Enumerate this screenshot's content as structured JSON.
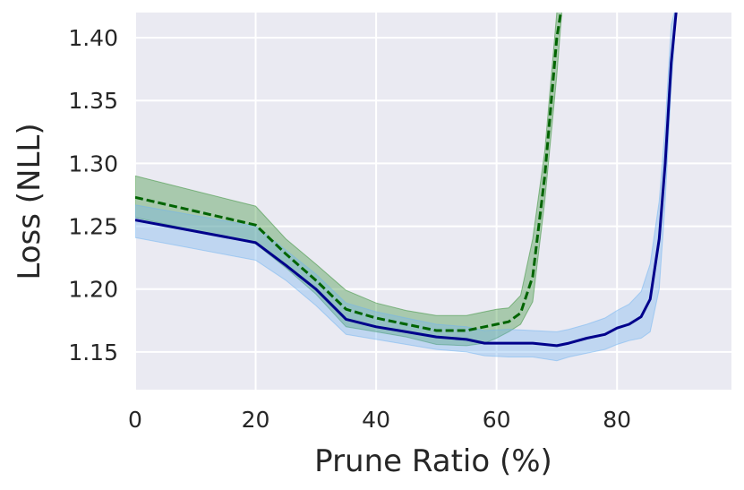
{
  "chart_data": {
    "type": "line",
    "title": "",
    "xlabel": "Prune Ratio (%)",
    "ylabel": "Loss (NLL)",
    "xlim": [
      0,
      99
    ],
    "ylim": [
      1.12,
      1.42
    ],
    "xticks": [
      0,
      20,
      40,
      60,
      80
    ],
    "xtick_labels": [
      "0",
      "20",
      "40",
      "60",
      "80"
    ],
    "yticks": [
      1.15,
      1.2,
      1.25,
      1.3,
      1.35,
      1.4
    ],
    "ytick_labels": [
      "1.15",
      "1.20",
      "1.25",
      "1.30",
      "1.35",
      "1.40"
    ],
    "grid": true,
    "legend": "none",
    "colors": {
      "background": "#eaeaf2",
      "grid": "#ffffff"
    },
    "series": [
      {
        "style": "dashed",
        "color": "#006400",
        "band_color": "#2e8b2e",
        "x": [
          0,
          20,
          25,
          30,
          35,
          40,
          45,
          50,
          55,
          58,
          60,
          62,
          64,
          66,
          68,
          70,
          71
        ],
        "y": [
          1.273,
          1.251,
          1.228,
          1.207,
          1.184,
          1.177,
          1.172,
          1.167,
          1.167,
          1.17,
          1.172,
          1.174,
          1.181,
          1.21,
          1.29,
          1.4,
          1.43
        ],
        "lower": [
          1.257,
          1.236,
          1.217,
          1.196,
          1.17,
          1.166,
          1.162,
          1.156,
          1.155,
          1.157,
          1.161,
          1.166,
          1.172,
          1.19,
          1.27,
          1.37,
          1.43
        ],
        "upper": [
          1.29,
          1.266,
          1.24,
          1.22,
          1.199,
          1.189,
          1.183,
          1.179,
          1.179,
          1.182,
          1.184,
          1.185,
          1.195,
          1.24,
          1.31,
          1.42,
          1.43
        ]
      },
      {
        "style": "solid",
        "color": "#00008b",
        "band_color": "#6fb3f2",
        "x": [
          0,
          20,
          25,
          30,
          35,
          40,
          45,
          50,
          55,
          58,
          62,
          66,
          70,
          72,
          75,
          78,
          80,
          82,
          84,
          85.5,
          87,
          88,
          89,
          90
        ],
        "y": [
          1.255,
          1.237,
          1.219,
          1.2,
          1.176,
          1.17,
          1.166,
          1.162,
          1.16,
          1.157,
          1.157,
          1.157,
          1.155,
          1.157,
          1.161,
          1.164,
          1.169,
          1.172,
          1.178,
          1.192,
          1.24,
          1.3,
          1.38,
          1.43
        ],
        "lower": [
          1.241,
          1.223,
          1.207,
          1.187,
          1.164,
          1.16,
          1.156,
          1.152,
          1.15,
          1.147,
          1.146,
          1.146,
          1.143,
          1.146,
          1.149,
          1.152,
          1.156,
          1.159,
          1.161,
          1.166,
          1.2,
          1.27,
          1.36,
          1.43
        ],
        "upper": [
          1.267,
          1.25,
          1.231,
          1.212,
          1.189,
          1.182,
          1.177,
          1.172,
          1.17,
          1.167,
          1.168,
          1.167,
          1.166,
          1.168,
          1.172,
          1.177,
          1.183,
          1.188,
          1.198,
          1.22,
          1.27,
          1.33,
          1.41,
          1.43
        ]
      }
    ]
  }
}
